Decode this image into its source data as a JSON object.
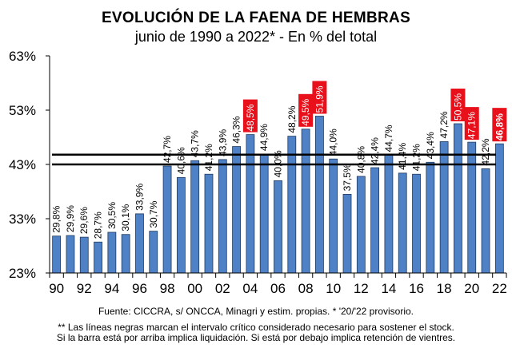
{
  "chart_data": {
    "type": "bar",
    "title": "EVOLUCIÓN DE LA FAENA DE HEMBRAS",
    "subtitle": "junio de 1990 a 2022* - En % del total",
    "xlabel": "",
    "ylabel": "",
    "ylim": [
      23,
      63
    ],
    "yticks": [
      63,
      53,
      43,
      33,
      23
    ],
    "ytick_labels": [
      "63%",
      "53%",
      "43%",
      "33%",
      "23%"
    ],
    "categories": [
      "1990",
      "1991",
      "1992",
      "1993",
      "1994",
      "1995",
      "1996",
      "1997",
      "1998",
      "1999",
      "2000",
      "2001",
      "2002",
      "2003",
      "2004",
      "2005",
      "2006",
      "2007",
      "2008",
      "2009",
      "2010",
      "2011",
      "2012",
      "2013",
      "2014",
      "2015",
      "2016",
      "2017",
      "2018",
      "2019",
      "2020",
      "2021",
      "2022"
    ],
    "xtick_labels": [
      "90",
      "92",
      "94",
      "96",
      "98",
      "00",
      "02",
      "04",
      "06",
      "08",
      "10",
      "12",
      "14",
      "16",
      "18",
      "20",
      "22"
    ],
    "values": [
      29.8,
      29.9,
      29.6,
      28.7,
      30.5,
      30.1,
      33.9,
      30.7,
      42.7,
      40.6,
      43.7,
      41.2,
      43.9,
      46.3,
      48.5,
      44.9,
      40.0,
      48.2,
      49.5,
      51.9,
      44.0,
      37.5,
      40.8,
      42.4,
      44.7,
      41.4,
      41.2,
      43.4,
      47.2,
      50.5,
      47.1,
      42.2,
      46.8
    ],
    "value_labels": [
      "29,8%",
      "29,9%",
      "29,6%",
      "28,7%",
      "30,5%",
      "30,1%",
      "33,9%",
      "30,7%",
      "42,7%",
      "40,6%",
      "43,7%",
      "41,2%",
      "43,9%",
      "46,3%",
      "48,5%",
      "44,9%",
      "40,0%",
      "48,2%",
      "49,5%",
      "51,9%",
      "44,0%",
      "37,5%",
      "40,8%",
      "42,4%",
      "44,7%",
      "41,4%",
      "41,2%",
      "43,4%",
      "47,2%",
      "50,5%",
      "47,1%",
      "42,2%",
      "46,8%"
    ],
    "highlighted": [
      "2004",
      "2008",
      "2009",
      "2019",
      "2020",
      "2022"
    ],
    "bold_labels": [
      "2022"
    ],
    "reference_lines": [
      {
        "name": "upper-critical-line",
        "value": 44.8
      },
      {
        "name": "lower-critical-line",
        "value": 43.0
      }
    ],
    "colors": {
      "bar": "#4F81C7",
      "bar_edge": "#1F3A5F",
      "highlight_bg": "#E8101A",
      "reference_line": "#000000"
    },
    "grid": false,
    "legend": "none"
  },
  "footer": {
    "source": "Fuente: CICCRA, s/ ONCCA, Minagri y estim. propias. * '20/'22  provisorio.",
    "note_line1": "** Las líneas negras marcan el intervalo crítico considerado necesario para sostener el stock.",
    "note_line2": "Si la barra está por arriba implica liquidación. Si está por debajo implica retención de vientres."
  }
}
